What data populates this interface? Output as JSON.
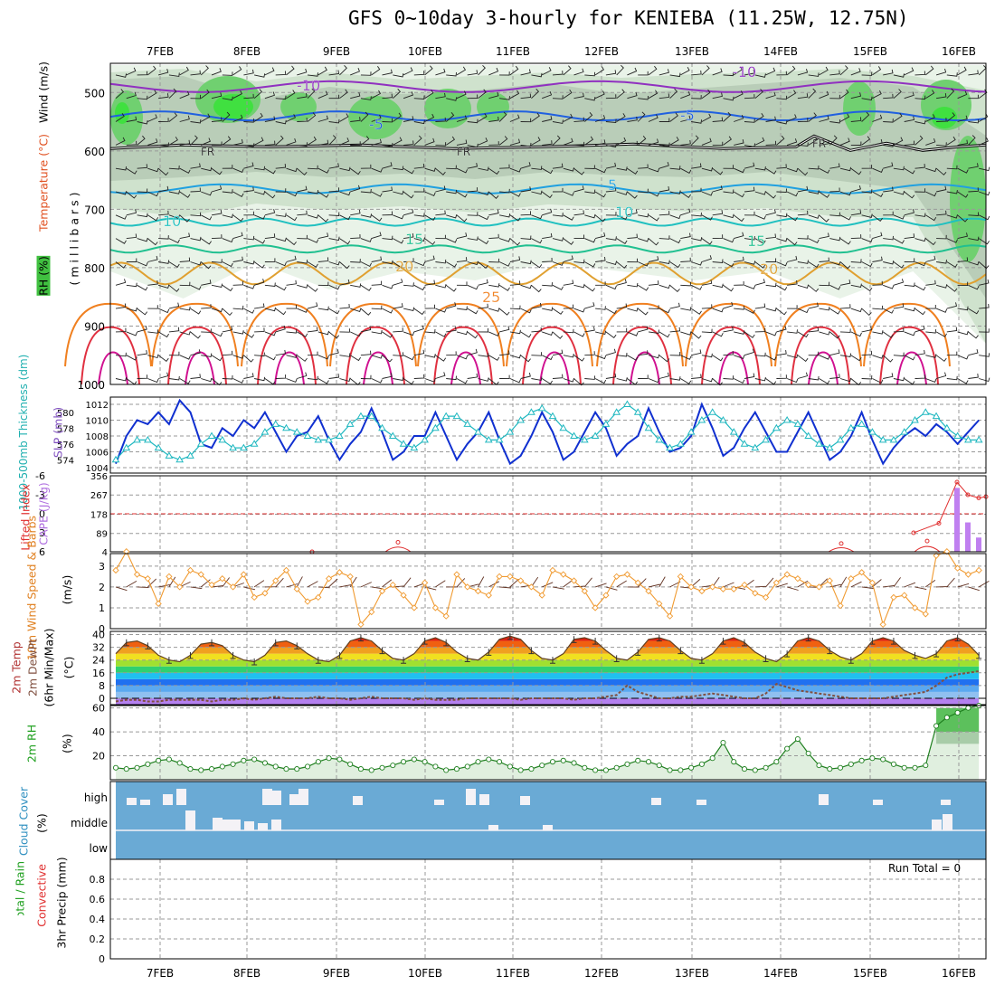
{
  "title": "GFS 0~10day 3-hourly for KENIEBA (11.25W, 12.75N)",
  "dates": [
    "7FEB",
    "8FEB",
    "9FEB",
    "10FEB",
    "11FEB",
    "12FEB",
    "13FEB",
    "14FEB",
    "15FEB",
    "16FEB"
  ],
  "colors": {
    "temp_line": "#f09a30",
    "dewpt_line": "#805040",
    "slp": "#1030d0",
    "thickness": "#20b8c0",
    "wind10": "#f09a30",
    "rh_line": "#208020",
    "rh_fill": "#e0efdf",
    "cloud": "#6aaad5",
    "cape": "#c080f0",
    "li": "#e03030"
  },
  "labels": {
    "panel1_wind": "Wind (m/s)",
    "panel1_temp": "Temperature (°C)",
    "panel1_rh": "RH (%)",
    "panel1_pressure": "(millibars)",
    "panel2_thick": "1000-500mb Thickness (dm)",
    "panel2_slp": "SLP (mb)",
    "panel3_cape": "CAPE (J/kg)",
    "panel3_li": "Lifted Index",
    "panel4": "10m Wind Speed & Barbs",
    "panel4_unit": "(m/s)",
    "panel5_a": "2m Temp",
    "panel5_b": "2m DewPt",
    "panel5_c": "(6hr Min/Max)",
    "panel5_unit": "(°C)",
    "panel6": "2m RH",
    "panel6_unit": "(%)",
    "panel7": "Cloud Cover",
    "panel7_unit": "(%)",
    "panel8_a": "Total / Rain",
    "panel8_b": "Convective",
    "panel8_c": "3hr Precip (mm)",
    "run_total": "Run Total = 0"
  },
  "chart_data": [
    {
      "type": "heatmap",
      "name": "upper-air cross section",
      "y_ticks": [
        500,
        600,
        700,
        800,
        900,
        1000
      ],
      "temp_contours": [
        -10,
        -5,
        0,
        5,
        10,
        15,
        20,
        25
      ],
      "contour_labels": [
        "-10",
        "-5",
        "FR",
        "5",
        "10",
        "15",
        "20",
        "25",
        "30",
        "50"
      ],
      "freezing_level_mb": 595
    },
    {
      "type": "line",
      "name": "SLP / thickness",
      "slp_ylim": [
        1004,
        1012
      ],
      "slp_ticks": [
        1004,
        1006,
        1008,
        1010,
        1012
      ],
      "thick_ylim": [
        573,
        581
      ],
      "thick_ticks": [
        574,
        576,
        578,
        580
      ],
      "series": [
        {
          "name": "SLP",
          "values": [
            1004.5,
            1008,
            1010,
            1009.5,
            1011,
            1009.5,
            1012.5,
            1011,
            1007,
            1006.5,
            1009,
            1008,
            1010,
            1009,
            1011,
            1008.5,
            1006,
            1008,
            1008.5,
            1010.5,
            1007.5,
            1005,
            1007,
            1008.5,
            1011.5,
            1008.5,
            1005,
            1006,
            1008,
            1008,
            1011,
            1008,
            1005,
            1007,
            1008.5,
            1011,
            1007.5,
            1004.5,
            1005.5,
            1008,
            1011,
            1008.5,
            1005,
            1006,
            1008.5,
            1011,
            1009,
            1005.5,
            1007,
            1008,
            1011.5,
            1008.5,
            1006,
            1006.5,
            1008,
            1012,
            1009,
            1005.5,
            1006.5,
            1009,
            1011,
            1008.5,
            1006,
            1006,
            1008.5,
            1011,
            1008,
            1005,
            1006,
            1008,
            1011,
            1007.5,
            1004.5,
            1006.5,
            1008,
            1009,
            1008,
            1009.5,
            1008.5,
            1007,
            1008.5,
            1010
          ]
        },
        {
          "name": "Thickness",
          "values": [
            574,
            575.5,
            576.5,
            576.5,
            575.5,
            574.5,
            574,
            574.5,
            576,
            577,
            576.5,
            575.5,
            575.5,
            576,
            577.5,
            578.5,
            578,
            577.5,
            577,
            576.5,
            576.5,
            577,
            578.5,
            579.5,
            579.5,
            578,
            577,
            576,
            575.5,
            576.5,
            578,
            579.5,
            579.5,
            578.5,
            577.5,
            576.5,
            576.5,
            577.5,
            579,
            580,
            580.5,
            579.5,
            578,
            577,
            576.5,
            577,
            578.5,
            580,
            581,
            580,
            578,
            576.5,
            575.5,
            576,
            577.5,
            579,
            580,
            579,
            577.5,
            576,
            575.5,
            576.5,
            578,
            579,
            578.5,
            577,
            576,
            575.5,
            576.5,
            578,
            578.5,
            577.5,
            576.5,
            576.5,
            577.5,
            579,
            580,
            579.5,
            578,
            577,
            576.5,
            576.5
          ]
        }
      ]
    },
    {
      "type": "bar",
      "name": "CAPE / Lifted Index",
      "cape_ticks": [
        4,
        89,
        178,
        267,
        356
      ],
      "li_ticks": [
        6,
        3,
        0,
        -3,
        -6
      ],
      "cape_values": [
        {
          "date": "16FEB 00Z",
          "value": 300
        },
        {
          "date": "16FEB 03Z",
          "value": 140
        },
        {
          "date": "16FEB 06Z",
          "value": 70
        }
      ],
      "li_values": [
        {
          "date": "15FEB 21Z",
          "value": 1.5
        },
        {
          "date": "16FEB 00Z",
          "value": -5
        },
        {
          "date": "16FEB 03Z",
          "value": -3
        },
        {
          "date": "16FEB 06Z",
          "value": -2.5
        }
      ]
    },
    {
      "type": "line",
      "name": "10m wind speed",
      "ylim": [
        0,
        3.5
      ],
      "y_ticks": [
        0,
        1,
        2,
        3
      ],
      "series": [
        {
          "name": "10m wind speed",
          "values": [
            2.8,
            3.7,
            2.6,
            2.4,
            1.2,
            2.5,
            2.0,
            2.8,
            2.6,
            2.1,
            2.4,
            2.0,
            2.6,
            1.5,
            1.7,
            2.3,
            2.8,
            1.9,
            1.3,
            1.5,
            2.4,
            2.7,
            2.5,
            0.2,
            0.8,
            1.8,
            2.1,
            1.6,
            1.0,
            2.2,
            1.0,
            0.6,
            2.6,
            2.0,
            1.8,
            1.6,
            2.5,
            2.5,
            2.3,
            2.0,
            1.6,
            2.8,
            2.6,
            2.3,
            1.8,
            1.0,
            1.6,
            2.5,
            2.6,
            2.2,
            1.8,
            1.2,
            0.6,
            2.5,
            2.0,
            1.8,
            2.0,
            1.9,
            1.9,
            2.1,
            1.7,
            1.5,
            2.2,
            2.6,
            2.4,
            2.1,
            2.0,
            2.3,
            1.1,
            2.4,
            2.7,
            2.2,
            0.2,
            1.5,
            1.6,
            1.0,
            0.7,
            3.5,
            3.7,
            2.9,
            2.6,
            2.8
          ]
        }
      ]
    },
    {
      "type": "area",
      "name": "2m temperature / dewpoint",
      "ylim": [
        -4,
        42
      ],
      "y_ticks": [
        0,
        8,
        16,
        24,
        32,
        40
      ],
      "temperature": [
        28,
        35,
        36,
        33,
        27,
        24,
        23,
        27,
        34,
        35,
        33,
        27,
        24,
        23,
        27,
        35,
        36,
        33,
        28,
        24,
        23,
        27,
        36,
        38,
        36,
        30,
        25,
        24,
        28,
        36,
        38,
        35,
        29,
        25,
        24,
        29,
        37,
        39,
        37,
        30,
        25,
        24,
        28,
        37,
        38,
        36,
        30,
        25,
        24,
        29,
        37,
        38,
        36,
        30,
        25,
        24,
        28,
        36,
        38,
        35,
        29,
        25,
        23,
        28,
        36,
        38,
        36,
        30,
        26,
        24,
        28,
        36,
        38,
        36,
        30,
        27,
        25,
        28,
        36,
        38,
        34,
        27
      ],
      "dewpoint": [
        -2,
        -1,
        -1,
        -2,
        -2,
        -1,
        -1,
        -1,
        -1,
        -2,
        -1,
        -1,
        0,
        -1,
        0,
        1,
        0,
        0,
        0,
        1,
        0,
        0,
        -1,
        0,
        1,
        0,
        0,
        0,
        -1,
        0,
        -1,
        -1,
        -1,
        0,
        0,
        0,
        0,
        0,
        -1,
        0,
        0,
        0,
        0,
        -1,
        0,
        0,
        1,
        2,
        8,
        4,
        2,
        0,
        0,
        1,
        1,
        2,
        3,
        2,
        1,
        0,
        0,
        3,
        9,
        7,
        5,
        4,
        3,
        2,
        1,
        0,
        0,
        0,
        0,
        1,
        2,
        3,
        4,
        8,
        13,
        15,
        16,
        17
      ]
    },
    {
      "type": "area",
      "name": "2m RH",
      "ylim": [
        0,
        60
      ],
      "y_ticks": [
        20,
        40,
        60
      ],
      "series": [
        {
          "name": "2m RH",
          "values": [
            10,
            9,
            10,
            13,
            16,
            17,
            14,
            9,
            8,
            9,
            11,
            13,
            16,
            17,
            14,
            11,
            9,
            9,
            11,
            15,
            18,
            17,
            13,
            9,
            8,
            10,
            12,
            15,
            17,
            15,
            11,
            8,
            9,
            11,
            15,
            17,
            15,
            11,
            8,
            9,
            12,
            15,
            16,
            14,
            10,
            8,
            8,
            10,
            13,
            16,
            15,
            12,
            8,
            8,
            10,
            13,
            18,
            31,
            15,
            9,
            8,
            10,
            15,
            26,
            34,
            22,
            12,
            9,
            10,
            13,
            16,
            18,
            17,
            13,
            10,
            10,
            12,
            45,
            52,
            56,
            60,
            62
          ]
        }
      ]
    },
    {
      "type": "heatmap",
      "name": "cloud cover",
      "rows": [
        "high",
        "middle",
        "low"
      ]
    },
    {
      "type": "bar",
      "name": "3hr precip",
      "ylim": [
        0,
        1
      ],
      "y_ticks": [
        0,
        0.2,
        0.4,
        0.6,
        0.8
      ],
      "values": []
    }
  ]
}
